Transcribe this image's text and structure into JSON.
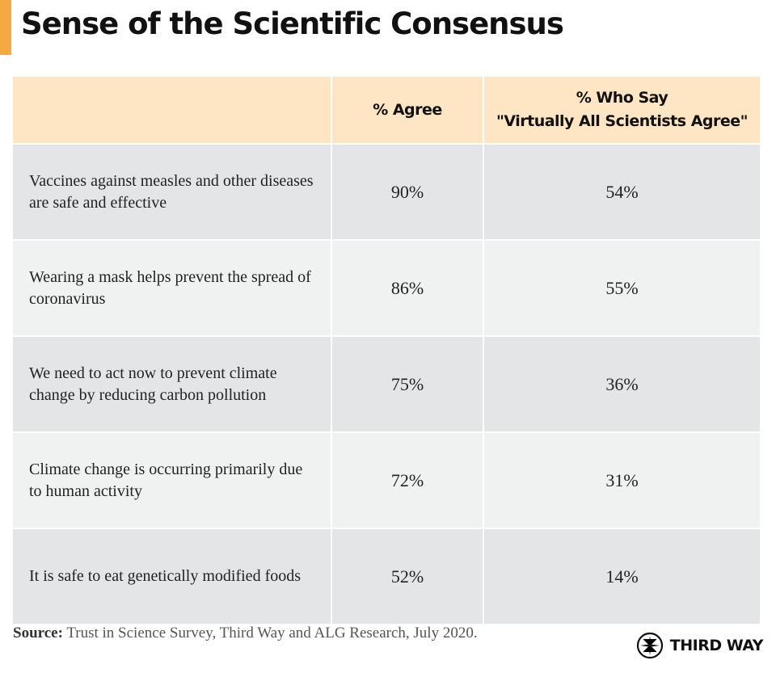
{
  "title": "Sense of the Scientific Consensus",
  "colors": {
    "accent": "#f7a941",
    "header_bg": "#fee5c3",
    "row_dark": "#e4e5e7",
    "row_light": "#f0f1f1"
  },
  "chart_data": {
    "type": "table",
    "columns": [
      "",
      "% Agree",
      "% Who Say \"Virtually All Scientists Agree\""
    ],
    "column_header_lines": [
      [
        "% Agree"
      ],
      [
        "% Who Say",
        "\"Virtually All Scientists Agree\""
      ]
    ],
    "rows": [
      {
        "statement": "Vaccines against measles and other diseases are safe and effective",
        "agree": "90%",
        "virtually_all": "54%"
      },
      {
        "statement": "Wearing a mask helps prevent the spread of coronavirus",
        "agree": "86%",
        "virtually_all": "55%"
      },
      {
        "statement": "We need to act now to prevent climate change by reducing carbon pollution",
        "agree": "75%",
        "virtually_all": "36%"
      },
      {
        "statement": "Climate change is occurring primarily due to human activity",
        "agree": "72%",
        "virtually_all": "31%"
      },
      {
        "statement": "It is safe to eat genetically modified foods",
        "agree": "52%",
        "virtually_all": "14%"
      }
    ]
  },
  "footer": {
    "source_label": "Source:",
    "source_text": "Trust in Science Survey, Third Way and ALG Research, July 2020.",
    "logo_text": "THIRD WAY",
    "logo_icon": "compass-star-icon"
  }
}
